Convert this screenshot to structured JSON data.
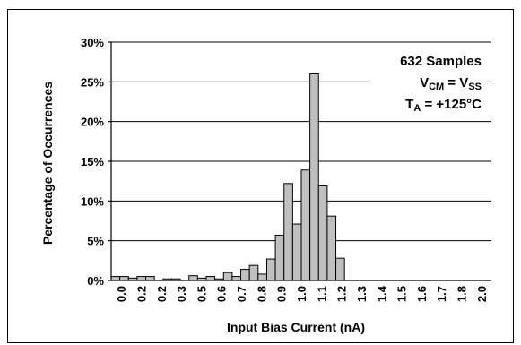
{
  "chart_data": {
    "type": "bar",
    "xlabel": "Input Bias Current (nA)",
    "ylabel": "Percentage of Occurrences",
    "ylim": [
      0,
      30
    ],
    "y_ticks": [
      "0%",
      "5%",
      "10%",
      "15%",
      "20%",
      "25%",
      "30%"
    ],
    "x_tick_labels": [
      "0.0",
      "0.2",
      "0.2",
      "0.3",
      "0.5",
      "0.6",
      "0.7",
      "0.8",
      "0.9",
      "1.0",
      "1.1",
      "1.2",
      "1.3",
      "1.4",
      "1.5",
      "1.6",
      "1.7",
      "1.8",
      "2.0"
    ],
    "grid": "horizontal",
    "values": [
      0.5,
      0.5,
      0.3,
      0.5,
      0.5,
      0.0,
      0.2,
      0.2,
      0.0,
      0.6,
      0.3,
      0.5,
      0.2,
      1.0,
      0.5,
      1.4,
      1.9,
      0.8,
      2.7,
      5.7,
      12.2,
      7.1,
      13.9,
      26.0,
      11.9,
      8.1,
      2.8,
      0,
      0,
      0,
      0,
      0,
      0,
      0,
      0,
      0,
      0,
      0,
      0,
      0,
      0,
      0,
      0,
      0
    ],
    "bar_color": "#c0c0c0",
    "annotation": {
      "line1": "632 Samples",
      "line2_main": "V",
      "line2_sub": "CM",
      "line2_mid": " = V",
      "line2_sub2": "SS",
      "line3_main": "T",
      "line3_sub": "A",
      "line3_rest": " = +125°C"
    }
  }
}
